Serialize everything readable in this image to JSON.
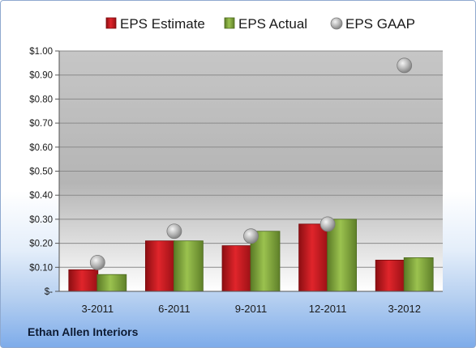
{
  "company_name": "Ethan Allen Interiors",
  "chart_data": {
    "type": "bar",
    "categories": [
      "3-2011",
      "6-2011",
      "9-2011",
      "12-2011",
      "3-2012"
    ],
    "series": [
      {
        "name": "EPS Estimate",
        "type": "bar",
        "color": "#c0141a",
        "values": [
          0.09,
          0.21,
          0.19,
          0.28,
          0.13
        ]
      },
      {
        "name": "EPS Actual",
        "type": "bar",
        "color": "#7fa23a",
        "values": [
          0.07,
          0.21,
          0.25,
          0.3,
          0.14
        ]
      },
      {
        "name": "EPS GAAP",
        "type": "scatter",
        "color": "#a8a8a8",
        "values": [
          0.12,
          0.25,
          0.23,
          0.28,
          0.94
        ]
      }
    ],
    "ylim": [
      0,
      1.0
    ],
    "yticks": [
      0,
      0.1,
      0.2,
      0.3,
      0.4,
      0.5,
      0.6,
      0.7,
      0.8,
      0.9,
      1.0
    ],
    "ytick_labels": [
      "$-",
      "$0.10",
      "$0.20",
      "$0.30",
      "$0.40",
      "$0.50",
      "$0.60",
      "$0.70",
      "$0.80",
      "$0.90",
      "$1.00"
    ],
    "grid": true,
    "legend_position": "top"
  }
}
